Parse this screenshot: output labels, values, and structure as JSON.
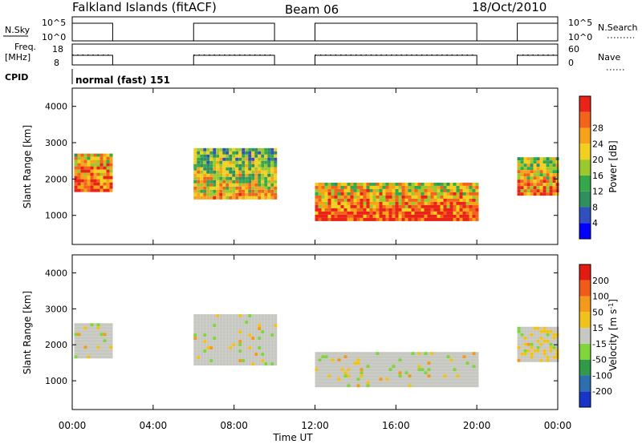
{
  "header": {
    "station": "Falkland Islands (fitACF)",
    "beam": "Beam 06",
    "date": "18/Oct/2010"
  },
  "panels": {
    "nsky": {
      "left_label": "N.Sky",
      "tick_top": "10^5",
      "tick_bottom": "10^0",
      "right_label": "N.Search",
      "right_tick_top": "10^5",
      "right_tick_bottom": "10^0"
    },
    "freq": {
      "left_label_1": "Freq.",
      "left_label_2": "[MHz]",
      "tick_top": "18",
      "tick_bottom": "8",
      "right_label": "Nave",
      "right_tick_top": "60",
      "right_tick_bottom": "0"
    },
    "cpid": {
      "left_label": "CPID",
      "mode_text": "normal (fast) 151"
    }
  },
  "power_scale": {
    "label": "Power [dB]",
    "ticks": [
      "4",
      "8",
      "12",
      "16",
      "20",
      "24",
      "28"
    ],
    "colors": [
      "#0000ff",
      "#3050c0",
      "#2f8f5f",
      "#34a84a",
      "#9bc82d",
      "#f2d020",
      "#f8a21a",
      "#f2641b",
      "#ea2317"
    ]
  },
  "velocity_scale": {
    "label": "Velocity [m s",
    "label_sup": "-1",
    "label_end": "]",
    "ticks": [
      "200",
      "100",
      "50",
      "15",
      "-15",
      "-50",
      "-100",
      "-200"
    ],
    "colors": [
      "#1736c8",
      "#2d6fae",
      "#2f9a48",
      "#7fd53a",
      "#c8c8c2",
      "#f2c21c",
      "#f39a1b",
      "#f05b1a",
      "#e21a10"
    ]
  },
  "chart_data": {
    "type": "heatmap",
    "xlabel": "Time UT",
    "ylabel": "Slant Range [km]",
    "x_ticks": [
      "00:00",
      "04:00",
      "08:00",
      "12:00",
      "16:00",
      "20:00",
      "00:00"
    ],
    "x_range_hours": [
      0,
      24
    ],
    "y_ticks": [
      1000,
      2000,
      3000,
      4000
    ],
    "y_range_km": [
      200,
      4500
    ],
    "operating_intervals_hours": [
      [
        0,
        2
      ],
      [
        6,
        10
      ],
      [
        12,
        20
      ],
      [
        22,
        24
      ]
    ],
    "power_bands": [
      {
        "name": "band-1",
        "t0": 0.1,
        "t1": 2.0,
        "r_lo": 1650,
        "r_hi": 2700,
        "value_db": 24
      },
      {
        "name": "band-2",
        "t0": 6.0,
        "t1": 10.0,
        "r_lo": 1500,
        "r_hi": 2850,
        "value_db": 16
      },
      {
        "name": "band-3",
        "t0": 12.0,
        "t1": 20.0,
        "r_lo": 900,
        "r_hi": 1900,
        "value_db": 24
      },
      {
        "name": "band-4",
        "t0": 22.0,
        "t1": 24.0,
        "r_lo": 1600,
        "r_hi": 2600,
        "value_db": 20
      }
    ],
    "velocity_bands": [
      {
        "name": "band-1",
        "t0": 0.1,
        "t1": 2.0,
        "r_lo": 1650,
        "r_hi": 2600,
        "value_ms": 0
      },
      {
        "name": "band-2",
        "t0": 6.0,
        "t1": 10.0,
        "r_lo": 1500,
        "r_hi": 2850,
        "value_ms": 0
      },
      {
        "name": "band-3",
        "t0": 12.0,
        "t1": 20.0,
        "r_lo": 850,
        "r_hi": 1800,
        "value_ms": 0
      },
      {
        "name": "band-4",
        "t0": 22.0,
        "t1": 24.0,
        "r_lo": 1600,
        "r_hi": 2500,
        "value_ms": -20
      }
    ]
  }
}
